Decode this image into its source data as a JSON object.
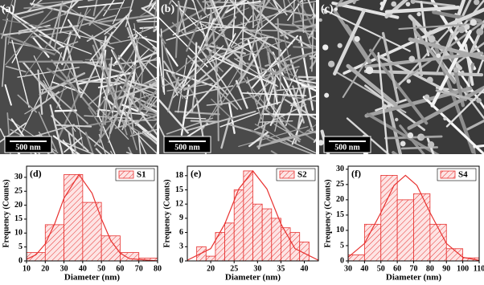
{
  "images": [
    {
      "label": "(a)",
      "scale_bar": "500 nm"
    },
    {
      "label": "(b)",
      "scale_bar": "500 nm"
    },
    {
      "label": "(c)",
      "scale_bar": "500 nm"
    }
  ],
  "chart_data": [
    {
      "type": "histogram",
      "panel_label": "(d)",
      "x_label": "Diameter (nm)",
      "y_label": "Frequency (Counts)",
      "legend": "S1",
      "color": "#e8312f",
      "bins": [
        10,
        20,
        30,
        40,
        50,
        60,
        70,
        80
      ],
      "counts": [
        3,
        13,
        31,
        21,
        9,
        3,
        1
      ],
      "fit": {
        "x": [
          10,
          15,
          20,
          25,
          30,
          38,
          45,
          50,
          55,
          60,
          65,
          80
        ],
        "y": [
          0.6,
          2.2,
          6.1,
          13.3,
          22.5,
          31,
          24.3,
          15.1,
          7.3,
          2.8,
          0.8,
          0
        ]
      },
      "xlim": [
        10,
        80
      ],
      "xticks": [
        10,
        20,
        30,
        40,
        50,
        60,
        70,
        80
      ],
      "ylim": [
        0,
        34
      ],
      "yticks": [
        0,
        5,
        10,
        15,
        20,
        25,
        30
      ]
    },
    {
      "type": "histogram",
      "panel_label": "(e)",
      "x_label": "Diameter (nm)",
      "y_label": "Frequency (Counts)",
      "legend": "S2",
      "color": "#e8312f",
      "bins": [
        17,
        19,
        21,
        23,
        25,
        27,
        29,
        31,
        33,
        35,
        37,
        39,
        41
      ],
      "counts": [
        3,
        1,
        6,
        8,
        15,
        19,
        12,
        11,
        9,
        7,
        6,
        4
      ],
      "fit": {
        "x": [
          15,
          20,
          23,
          26,
          29,
          32,
          35,
          38,
          43
        ],
        "y": [
          0.15,
          2.6,
          7.8,
          15.2,
          19,
          15.2,
          7.8,
          2.6,
          0.15
        ]
      },
      "xlim": [
        15,
        43
      ],
      "xticks": [
        20,
        25,
        30,
        35,
        40
      ],
      "ylim": [
        0,
        20
      ],
      "yticks": [
        0,
        3,
        6,
        9,
        12,
        15,
        18
      ]
    },
    {
      "type": "histogram",
      "panel_label": "(f)",
      "x_label": "Diameter (nm)",
      "y_label": "Frequency (Counts)",
      "legend": "S4",
      "color": "#e8312f",
      "bins": [
        30,
        40,
        50,
        60,
        70,
        80,
        90,
        100,
        110
      ],
      "counts": [
        2,
        12,
        28,
        20,
        22,
        12,
        4,
        1
      ],
      "fit": {
        "x": [
          30,
          40,
          50,
          58,
          65,
          72,
          80,
          90,
          100,
          110
        ],
        "y": [
          1.2,
          5.7,
          15.8,
          24.7,
          28,
          24.7,
          15.8,
          5.7,
          1.2,
          0.16
        ]
      },
      "xlim": [
        30,
        110
      ],
      "xticks": [
        30,
        40,
        50,
        60,
        70,
        80,
        90,
        100,
        110
      ],
      "ylim": [
        0,
        31
      ],
      "yticks": [
        0,
        5,
        10,
        15,
        20,
        25,
        30
      ]
    }
  ]
}
